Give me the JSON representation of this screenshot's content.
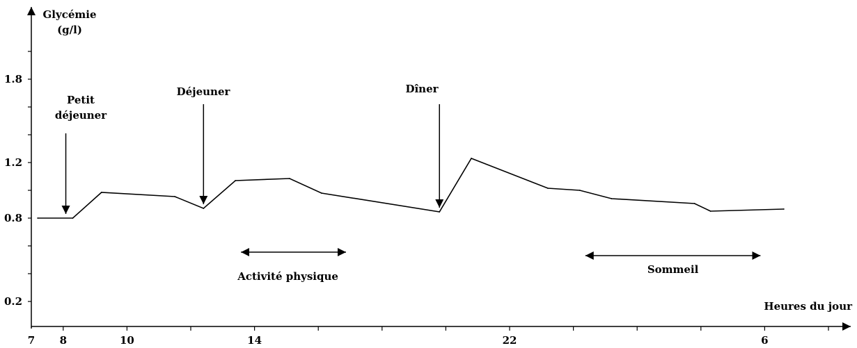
{
  "chart_data": {
    "type": "line",
    "ylabel": [
      "Glycémie",
      "(g/l)"
    ],
    "xlabel": "Heures du jour",
    "y_ticks": [
      0.2,
      0.8,
      1.2,
      1.8
    ],
    "x_tick_labels": [
      "7",
      "8",
      "10",
      "14",
      "22",
      "6"
    ],
    "series": [
      {
        "x": [
          7.2,
          8.3,
          9.2,
          11.5,
          12.4,
          13.4,
          15.1,
          16.1,
          19.8,
          20.8,
          23.2,
          24.2,
          25.2,
          27.8,
          28.3,
          30.6
        ],
        "y": [
          0.8,
          0.8,
          0.985,
          0.955,
          0.87,
          1.07,
          1.085,
          0.98,
          0.845,
          1.23,
          1.015,
          1.0,
          0.94,
          0.905,
          0.85,
          0.865
        ]
      }
    ],
    "annotations": [
      {
        "label": [
          "Petit",
          "déjeuner"
        ],
        "x": 8.3
      },
      {
        "label": [
          "Déjeuner"
        ],
        "x": 12.4
      },
      {
        "label": [
          "Dîner"
        ],
        "x": 19.8
      }
    ],
    "periods": [
      {
        "label": "Activité physique",
        "x_start": 13.4,
        "x_end": 17.0
      },
      {
        "label": "Sommeil",
        "x_start": 24.2,
        "x_end": 30.0
      }
    ]
  }
}
